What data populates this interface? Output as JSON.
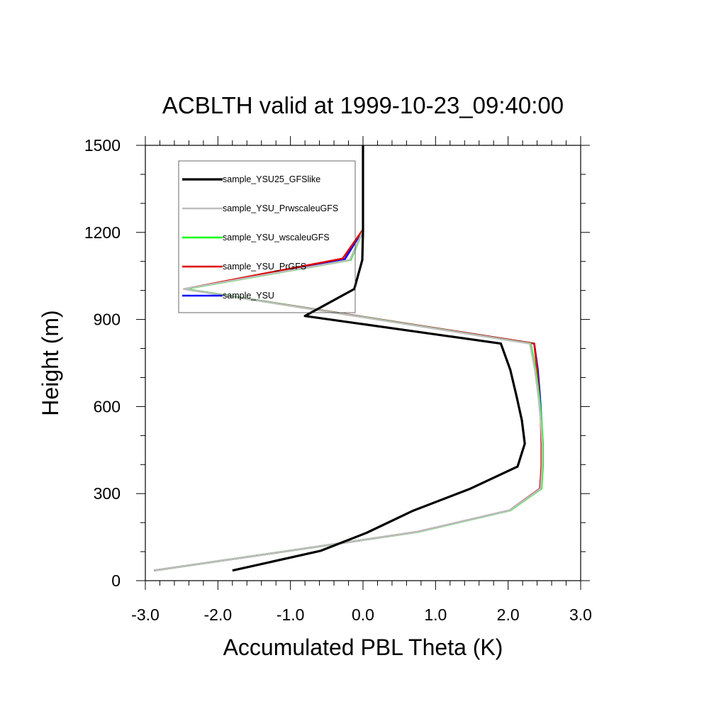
{
  "chart_data": {
    "type": "line",
    "title": "ACBLTH valid at 1999-10-23_09:40:00",
    "xlabel": "Accumulated PBL Theta (K)",
    "ylabel": "Height (m)",
    "xlim": [
      -3.0,
      3.0
    ],
    "ylim": [
      0,
      1500
    ],
    "x_ticks": [
      "-3.0",
      "-2.0",
      "-1.0",
      "0.0",
      "1.0",
      "2.0",
      "3.0"
    ],
    "y_ticks": [
      "0",
      "300",
      "600",
      "900",
      "1200",
      "1500"
    ],
    "grid": false,
    "legend_position": "top-left",
    "series": [
      {
        "name": "sample_YSU25_GFSlike",
        "color": "#000000",
        "points": [
          [
            -1.8,
            35
          ],
          [
            -0.58,
            103
          ],
          [
            0.05,
            165
          ],
          [
            0.68,
            240
          ],
          [
            1.48,
            317
          ],
          [
            2.13,
            393
          ],
          [
            2.23,
            472
          ],
          [
            2.19,
            552
          ],
          [
            2.12,
            632
          ],
          [
            2.03,
            727
          ],
          [
            1.9,
            817
          ],
          [
            -0.8,
            912
          ],
          [
            -0.12,
            1005
          ],
          [
            -0.01,
            1105
          ],
          [
            0.0,
            1205
          ],
          [
            0.0,
            1500
          ]
        ]
      },
      {
        "name": "sample_YSU_PrwscaleuGFS",
        "color": "#bdbdbd",
        "points": [
          [
            -2.88,
            35
          ],
          [
            -0.55,
            120
          ],
          [
            0.75,
            168
          ],
          [
            2.02,
            242
          ],
          [
            2.45,
            317
          ],
          [
            2.47,
            395
          ],
          [
            2.47,
            472
          ],
          [
            2.45,
            552
          ],
          [
            2.42,
            632
          ],
          [
            2.37,
            727
          ],
          [
            2.3,
            817
          ],
          [
            -2.47,
            1005
          ],
          [
            -0.18,
            1105
          ],
          [
            0.0,
            1205
          ],
          [
            0.0,
            1270
          ]
        ]
      },
      {
        "name": "sample_YSU_wscaleuGFS",
        "color": "#00ff00",
        "points": [
          [
            -2.88,
            35
          ],
          [
            -0.55,
            120
          ],
          [
            0.76,
            168
          ],
          [
            2.03,
            242
          ],
          [
            2.46,
            317
          ],
          [
            2.48,
            395
          ],
          [
            2.48,
            472
          ],
          [
            2.46,
            552
          ],
          [
            2.43,
            632
          ],
          [
            2.38,
            727
          ],
          [
            2.31,
            817
          ],
          [
            -2.45,
            1005
          ],
          [
            -0.17,
            1105
          ],
          [
            0.0,
            1205
          ]
        ]
      },
      {
        "name": "sample_YSU_PrGFS",
        "color": "#dd0000",
        "points": [
          [
            -2.88,
            35
          ],
          [
            -0.55,
            120
          ],
          [
            0.75,
            168
          ],
          [
            2.02,
            242
          ],
          [
            2.44,
            317
          ],
          [
            2.46,
            395
          ],
          [
            2.46,
            472
          ],
          [
            2.45,
            552
          ],
          [
            2.43,
            632
          ],
          [
            2.4,
            727
          ],
          [
            2.36,
            817
          ],
          [
            -2.46,
            1005
          ],
          [
            -0.28,
            1110
          ],
          [
            0.0,
            1210
          ],
          [
            0.0,
            1260
          ]
        ]
      },
      {
        "name": "sample_YSU",
        "color": "#0000ff",
        "points": [
          [
            -2.88,
            35
          ],
          [
            -0.55,
            120
          ],
          [
            0.75,
            168
          ],
          [
            2.02,
            242
          ],
          [
            2.44,
            317
          ],
          [
            2.47,
            395
          ],
          [
            2.47,
            472
          ],
          [
            2.46,
            552
          ],
          [
            2.44,
            632
          ],
          [
            2.41,
            727
          ],
          [
            2.36,
            817
          ],
          [
            -2.46,
            1005
          ],
          [
            -0.25,
            1108
          ],
          [
            0.0,
            1208
          ]
        ]
      }
    ]
  }
}
